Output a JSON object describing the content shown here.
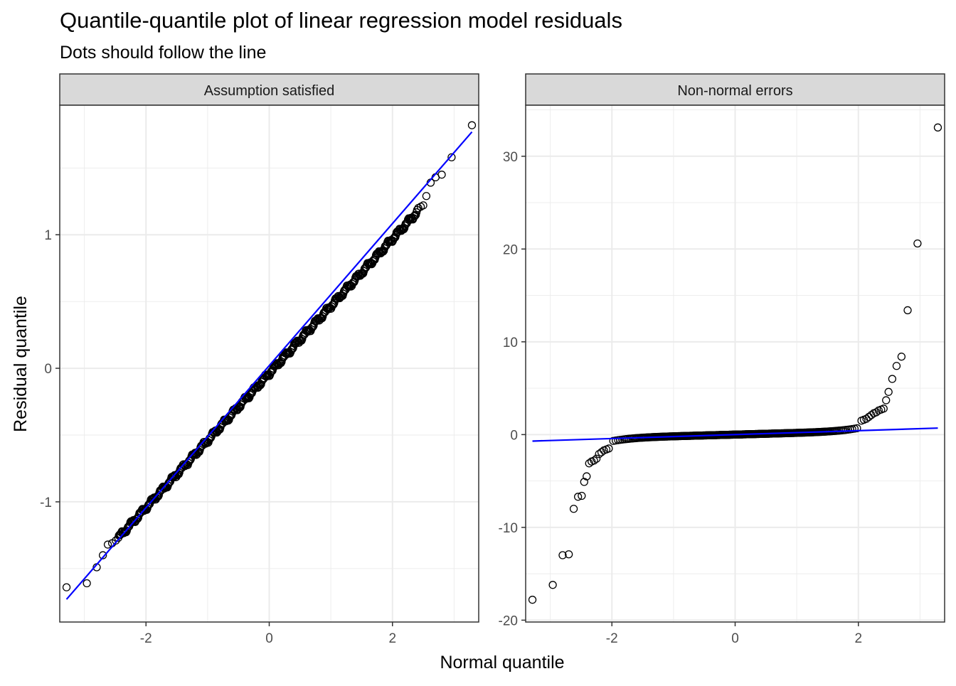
{
  "chart": {
    "title": "Quantile-quantile plot of linear regression model residuals",
    "subtitle": "Dots should follow the line",
    "xlabel": "Normal quantile",
    "ylabel": "Residual quantile",
    "colors": {
      "line": "#0000ff",
      "point_stroke": "#000000",
      "grid": "#ebebeb",
      "strip_bg": "#d9d9d9",
      "panel_border": "#333333"
    }
  },
  "chart_data": [
    {
      "type": "scatter",
      "panel": "Assumption satisfied",
      "xlim": [
        -3.4,
        3.4
      ],
      "ylim": [
        -1.9,
        1.97
      ],
      "x_ticks": [
        -2,
        0,
        2
      ],
      "x_tick_labels": [
        "-2",
        "0",
        "2"
      ],
      "y_ticks": [
        -1,
        0,
        1
      ],
      "y_tick_labels": [
        "-1",
        "0",
        "1"
      ],
      "grid": true,
      "reference_line": {
        "x": [
          -3.29,
          3.29
        ],
        "y": [
          -1.73,
          1.77
        ]
      },
      "outlier_points": [
        [
          -3.29,
          -1.64
        ],
        [
          -2.96,
          -1.61
        ],
        [
          -2.8,
          -1.49
        ],
        [
          -2.7,
          -1.4
        ],
        [
          -2.62,
          -1.32
        ],
        [
          -2.55,
          -1.31
        ],
        [
          -2.49,
          -1.29
        ],
        [
          2.42,
          1.2
        ],
        [
          2.46,
          1.21
        ],
        [
          2.5,
          1.22
        ],
        [
          2.55,
          1.29
        ],
        [
          2.62,
          1.39
        ],
        [
          2.7,
          1.43
        ],
        [
          2.8,
          1.45
        ],
        [
          2.96,
          1.58
        ],
        [
          3.29,
          1.82
        ]
      ],
      "bulk_points": {
        "x_range": [
          -2.45,
          2.4
        ],
        "y_range": [
          -1.27,
          1.17
        ],
        "count": 495,
        "wobble": 0.014
      }
    },
    {
      "type": "scatter",
      "panel": "Non-normal errors",
      "xlim": [
        -3.4,
        3.4
      ],
      "ylim": [
        -20.2,
        35.5
      ],
      "x_ticks": [
        -2,
        0,
        2
      ],
      "x_tick_labels": [
        "-2",
        "0",
        "2"
      ],
      "y_ticks": [
        -20,
        -10,
        0,
        10,
        20,
        30
      ],
      "y_tick_labels": [
        "-20",
        "-10",
        "0",
        "10",
        "20",
        "30"
      ],
      "grid": true,
      "reference_line": {
        "x": [
          -3.29,
          3.29
        ],
        "y": [
          -0.7,
          0.7
        ]
      },
      "tail_points": [
        [
          -3.29,
          -17.8
        ],
        [
          -2.96,
          -16.2
        ],
        [
          -2.8,
          -13.0
        ],
        [
          -2.7,
          -12.9
        ],
        [
          -2.62,
          -8.0
        ],
        [
          -2.55,
          -6.7
        ],
        [
          -2.49,
          -6.6
        ],
        [
          -2.45,
          -5.1
        ],
        [
          -2.41,
          -4.5
        ],
        [
          -2.37,
          -3.1
        ],
        [
          -2.33,
          -2.9
        ],
        [
          -2.29,
          -2.8
        ],
        [
          -2.25,
          -2.6
        ],
        [
          -2.21,
          -2.1
        ],
        [
          -2.17,
          -1.9
        ],
        [
          -2.13,
          -1.7
        ],
        [
          -2.09,
          -1.6
        ],
        [
          -2.05,
          -1.5
        ],
        [
          2.05,
          1.5
        ],
        [
          2.09,
          1.6
        ],
        [
          2.13,
          1.7
        ],
        [
          2.17,
          1.9
        ],
        [
          2.21,
          2.1
        ],
        [
          2.25,
          2.3
        ],
        [
          2.29,
          2.4
        ],
        [
          2.33,
          2.6
        ],
        [
          2.37,
          2.7
        ],
        [
          2.41,
          2.8
        ],
        [
          2.45,
          3.7
        ],
        [
          2.49,
          4.6
        ],
        [
          2.55,
          6.0
        ],
        [
          2.62,
          7.4
        ],
        [
          2.7,
          8.4
        ],
        [
          2.8,
          13.4
        ],
        [
          2.96,
          20.6
        ],
        [
          3.29,
          33.1
        ]
      ],
      "bulk_points": {
        "x_range": [
          -2.0,
          2.0
        ],
        "count": 400
      }
    }
  ]
}
